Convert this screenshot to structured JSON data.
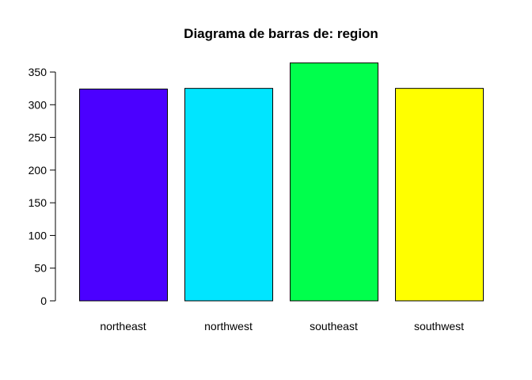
{
  "chart_data": {
    "type": "bar",
    "title": "Diagrama de barras de:  region",
    "xlabel": "",
    "ylabel": "",
    "categories": [
      "northeast",
      "northwest",
      "southeast",
      "southwest"
    ],
    "values": [
      324,
      325,
      364,
      325
    ],
    "colors": [
      "#4B00FF",
      "#00E5FF",
      "#00FF4C",
      "#FFFF00"
    ],
    "ylim": [
      0,
      350
    ],
    "yticks": [
      0,
      50,
      100,
      150,
      200,
      250,
      300,
      350
    ],
    "grid": false,
    "legend": "none"
  }
}
